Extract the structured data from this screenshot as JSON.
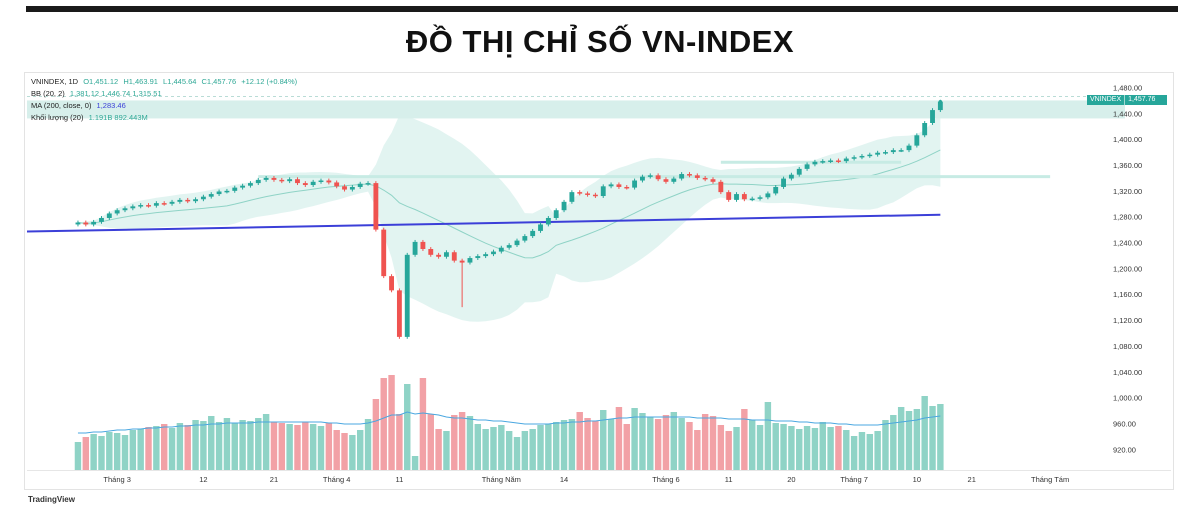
{
  "page_title": "ĐỒ THỊ CHỈ SỐ VN-INDEX",
  "legend": {
    "symbol_line": "VNINDEX, 1D",
    "open": "O1,451.12",
    "high": "H1,463.91",
    "low": "L1,445.64",
    "close": "C1,457.76",
    "change": "+12.12 (+0.84%)",
    "bb_label": "BB (20, 2)",
    "bb_values": "1,381.12  1,446.74  1,315.51",
    "ma_label": "MA (200, close, 0)",
    "ma_value": "1,283.46",
    "vol_label": "Khối lượng (20)",
    "vol_values": "1.191B  892.443M"
  },
  "badge": {
    "symbol": "VNINDEX",
    "value": "1,457.76"
  },
  "footer": "TradingView",
  "colors": {
    "up": "#26a69a",
    "down": "#ef5350",
    "vol_up": "#8fd3c6",
    "vol_down": "#f2a1a6",
    "ma200": "#3b3fd8",
    "bb_fill": "#dff3ef",
    "bb_mid": "#8fd3c6",
    "vol_ma": "#4aa7e0"
  },
  "chart_data": {
    "type": "candlestick",
    "title": "",
    "y_axis": {
      "side": "right",
      "ticks": [
        920,
        960,
        1000,
        1040,
        1080,
        1120,
        1160,
        1200,
        1240,
        1280,
        1320,
        1360,
        1400,
        1440,
        1480
      ],
      "tick_labels": [
        "920.00",
        "960.00",
        "1,000.00",
        "1,040.00",
        "1,080.00",
        "1,120.00",
        "1,160.00",
        "1,200.00",
        "1,240.00",
        "1,280.00",
        "1,320.00",
        "1,360.00",
        "1,400.00",
        "1,440.00",
        "1,480.00"
      ],
      "ylim": [
        905,
        1490
      ]
    },
    "x_axis": {
      "tick_labels": [
        "Tháng 3",
        "12",
        "21",
        "Tháng 4",
        "11",
        "Tháng Năm",
        "14",
        "Tháng 6",
        "11",
        "20",
        "Tháng 7",
        "10",
        "21",
        "Tháng Tám"
      ],
      "tick_positions": [
        5,
        16,
        25,
        33,
        41,
        54,
        62,
        75,
        83,
        91,
        99,
        107,
        114,
        124
      ],
      "x_range": [
        -6.5,
        131
      ]
    },
    "close": [
      1271,
      1268,
      1272,
      1278,
      1285,
      1290,
      1293,
      1296,
      1298,
      1297,
      1301,
      1300,
      1303,
      1306,
      1304,
      1307,
      1311,
      1315,
      1319,
      1320,
      1325,
      1328,
      1332,
      1337,
      1340,
      1337,
      1335,
      1338,
      1332,
      1329,
      1334,
      1336,
      1333,
      1327,
      1322,
      1326,
      1331,
      1332,
      1260,
      1188,
      1166,
      1094,
      1221,
      1241,
      1230,
      1221,
      1218,
      1225,
      1212,
      1209,
      1216,
      1219,
      1222,
      1226,
      1232,
      1236,
      1243,
      1250,
      1258,
      1268,
      1278,
      1290,
      1303,
      1318,
      1316,
      1314,
      1312,
      1327,
      1330,
      1326,
      1325,
      1336,
      1342,
      1344,
      1338,
      1334,
      1339,
      1346,
      1344,
      1340,
      1338,
      1334,
      1318,
      1306,
      1315,
      1307,
      1308,
      1310,
      1316,
      1326,
      1339,
      1345,
      1354,
      1361,
      1365,
      1366,
      1367,
      1366,
      1370,
      1372,
      1374,
      1376,
      1379,
      1380,
      1383,
      1383,
      1390,
      1406,
      1425,
      1445,
      1458
    ],
    "volume": [
      0.28,
      0.33,
      0.36,
      0.34,
      0.38,
      0.37,
      0.35,
      0.4,
      0.41,
      0.43,
      0.44,
      0.46,
      0.42,
      0.47,
      0.45,
      0.5,
      0.49,
      0.54,
      0.48,
      0.52,
      0.47,
      0.5,
      0.49,
      0.52,
      0.56,
      0.48,
      0.47,
      0.46,
      0.45,
      0.48,
      0.46,
      0.44,
      0.47,
      0.4,
      0.37,
      0.35,
      0.4,
      0.51,
      0.71,
      0.92,
      0.95,
      0.56,
      0.86,
      0.14,
      0.92,
      0.56,
      0.41,
      0.39,
      0.55,
      0.58,
      0.54,
      0.46,
      0.41,
      0.43,
      0.45,
      0.39,
      0.33,
      0.39,
      0.41,
      0.45,
      0.46,
      0.48,
      0.5,
      0.51,
      0.58,
      0.52,
      0.49,
      0.6,
      0.51,
      0.63,
      0.46,
      0.62,
      0.57,
      0.53,
      0.51,
      0.55,
      0.58,
      0.52,
      0.48,
      0.4,
      0.56,
      0.54,
      0.45,
      0.39,
      0.43,
      0.61,
      0.5,
      0.45,
      0.68,
      0.47,
      0.46,
      0.44,
      0.41,
      0.44,
      0.42,
      0.48,
      0.43,
      0.44,
      0.4,
      0.34,
      0.38,
      0.36,
      0.39,
      0.5,
      0.55,
      0.63,
      0.59,
      0.61,
      0.74,
      0.64,
      0.66
    ],
    "ma200": {
      "start": 1257,
      "end": 1283
    },
    "volume_ma": [
      0.37,
      0.37,
      0.38,
      0.38,
      0.39,
      0.4,
      0.4,
      0.41,
      0.41,
      0.42,
      0.42,
      0.43,
      0.43,
      0.44,
      0.44,
      0.45,
      0.45,
      0.46,
      0.46,
      0.47,
      0.47,
      0.47,
      0.47,
      0.48,
      0.48,
      0.48,
      0.48,
      0.48,
      0.48,
      0.48,
      0.48,
      0.48,
      0.47,
      0.47,
      0.46,
      0.46,
      0.46,
      0.47,
      0.49,
      0.52,
      0.55,
      0.55,
      0.58,
      0.56,
      0.57,
      0.56,
      0.55,
      0.53,
      0.52,
      0.52,
      0.51,
      0.5,
      0.5,
      0.49,
      0.49,
      0.48,
      0.47,
      0.46,
      0.46,
      0.46,
      0.46,
      0.47,
      0.47,
      0.48,
      0.48,
      0.49,
      0.49,
      0.5,
      0.51,
      0.52,
      0.52,
      0.53,
      0.53,
      0.53,
      0.53,
      0.53,
      0.53,
      0.53,
      0.53,
      0.52,
      0.52,
      0.52,
      0.52,
      0.51,
      0.51,
      0.51,
      0.5,
      0.5,
      0.5,
      0.49,
      0.49,
      0.49,
      0.48,
      0.48,
      0.47,
      0.47,
      0.47,
      0.46,
      0.46,
      0.45,
      0.45,
      0.45,
      0.45,
      0.46,
      0.47,
      0.48,
      0.49,
      0.5,
      0.52,
      0.53,
      0.54
    ],
    "horizontal_lines": [
      1463,
      1365,
      1342
    ],
    "last_price": 1457.76
  }
}
